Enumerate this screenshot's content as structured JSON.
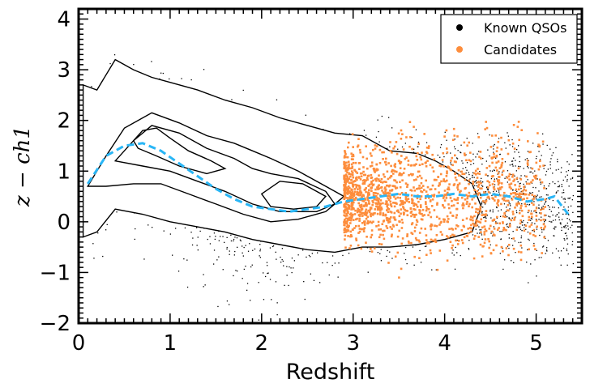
{
  "chart_data": {
    "type": "scatter",
    "xlabel": "Redshift",
    "ylabel": "z − ch1",
    "xlim": [
      0,
      5.5
    ],
    "ylim": [
      -2,
      4.2
    ],
    "xticks": [
      "0",
      "1",
      "2",
      "3",
      "4",
      "5"
    ],
    "yticks": [
      "−2",
      "−1",
      "0",
      "1",
      "2",
      "3",
      "4"
    ],
    "legend": {
      "position": "top-right",
      "entries": [
        {
          "label": "Known QSOs",
          "color": "#000000"
        },
        {
          "label": "Candidates",
          "color": "#fd8d3c"
        }
      ]
    },
    "colors": {
      "known": "#000000",
      "candidates": "#fd8d3c",
      "median": "#29b6f6",
      "contour": "#000000"
    },
    "series": [
      {
        "name": "Known QSOs",
        "kind": "scatter",
        "distribution_note": "dense population spanning redshift 0.1–5.4, color -1 to 3.9"
      },
      {
        "name": "Candidates",
        "kind": "scatter",
        "x_range": [
          2.9,
          5.1
        ],
        "y_range": [
          -1.6,
          2.3
        ]
      },
      {
        "kind": "median-line",
        "x": [
          0.1,
          0.3,
          0.5,
          0.7,
          0.9,
          1.1,
          1.3,
          1.5,
          1.7,
          1.9,
          2.1,
          2.3,
          2.5,
          2.7,
          2.9,
          3.1,
          3.3,
          3.5,
          3.7,
          3.9,
          4.1,
          4.3,
          4.5,
          4.7,
          4.9,
          5.1,
          5.2,
          5.35
        ],
        "y": [
          0.75,
          1.3,
          1.5,
          1.55,
          1.4,
          1.15,
          0.9,
          0.65,
          0.45,
          0.3,
          0.25,
          0.2,
          0.25,
          0.3,
          0.4,
          0.45,
          0.5,
          0.55,
          0.5,
          0.5,
          0.55,
          0.5,
          0.55,
          0.5,
          0.4,
          0.45,
          0.5,
          0.15
        ]
      }
    ],
    "contours": [
      {
        "level": "outer",
        "x": [
          0.05,
          0.2,
          0.4,
          0.6,
          0.8,
          1.0,
          1.3,
          1.6,
          1.9,
          2.2,
          2.5,
          2.8,
          3.1,
          3.4,
          3.7,
          3.9,
          4.1,
          4.3,
          4.4,
          4.3,
          4.0,
          3.7,
          3.4,
          3.1,
          2.8,
          2.5,
          2.2,
          1.9,
          1.6,
          1.3,
          1.0,
          0.7,
          0.4,
          0.2,
          0.05
        ],
        "y": [
          2.7,
          2.6,
          3.2,
          3.0,
          2.85,
          2.75,
          2.6,
          2.4,
          2.25,
          2.05,
          1.9,
          1.75,
          1.7,
          1.4,
          1.35,
          1.2,
          1.0,
          0.75,
          0.3,
          -0.2,
          -0.35,
          -0.45,
          -0.5,
          -0.5,
          -0.6,
          -0.55,
          -0.45,
          -0.35,
          -0.2,
          -0.1,
          0.0,
          0.15,
          0.25,
          -0.2,
          -0.3
        ]
      },
      {
        "level": "second",
        "x": [
          0.1,
          0.3,
          0.5,
          0.8,
          1.1,
          1.4,
          1.7,
          1.9,
          2.1,
          2.4,
          2.7,
          2.9,
          2.7,
          2.4,
          2.1,
          1.8,
          1.5,
          1.2,
          0.9,
          0.6,
          0.3,
          0.1
        ],
        "y": [
          0.7,
          1.3,
          1.85,
          2.15,
          1.95,
          1.7,
          1.55,
          1.4,
          1.25,
          1.0,
          0.7,
          0.5,
          0.2,
          0.05,
          0.0,
          0.15,
          0.35,
          0.55,
          0.75,
          0.75,
          0.7,
          0.7
        ]
      },
      {
        "level": "third",
        "x": [
          0.4,
          0.6,
          0.8,
          1.1,
          1.4,
          1.7,
          1.9,
          2.1,
          2.4,
          2.7,
          2.8,
          2.6,
          2.2,
          1.9,
          1.6,
          1.3,
          1.0,
          0.7,
          0.4
        ],
        "y": [
          1.2,
          1.6,
          1.9,
          1.75,
          1.45,
          1.25,
          1.05,
          0.95,
          0.85,
          0.6,
          0.35,
          0.2,
          0.2,
          0.35,
          0.6,
          0.8,
          1.0,
          1.1,
          1.2
        ]
      },
      {
        "level": "fourth",
        "x": [
          0.6,
          0.7,
          0.85,
          1.0,
          1.2,
          1.45,
          1.6,
          1.4,
          1.1,
          0.85,
          0.65,
          0.6
        ],
        "y": [
          1.6,
          1.8,
          1.85,
          1.65,
          1.4,
          1.2,
          1.05,
          0.95,
          1.1,
          1.3,
          1.45,
          1.6
        ]
      },
      {
        "level": "fourth-b",
        "x": [
          2.0,
          2.2,
          2.45,
          2.7,
          2.6,
          2.35,
          2.1,
          2.0
        ],
        "y": [
          0.55,
          0.8,
          0.75,
          0.5,
          0.3,
          0.25,
          0.3,
          0.55
        ]
      }
    ]
  }
}
